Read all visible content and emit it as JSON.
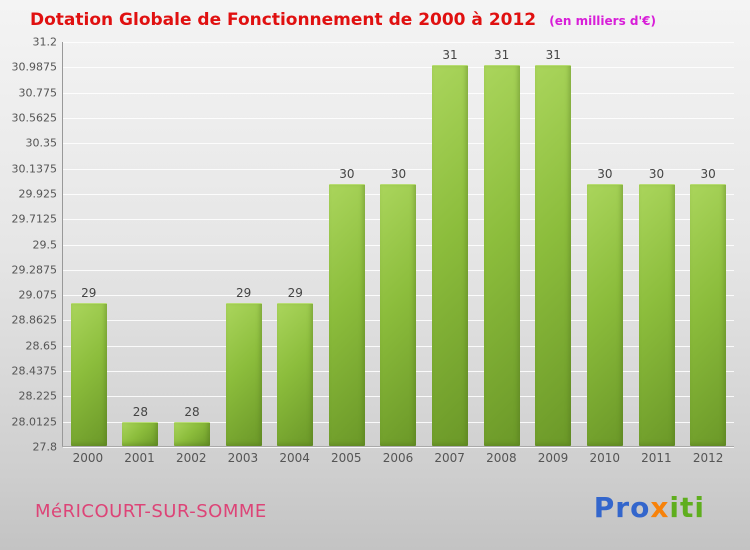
{
  "header": {
    "title": "Dotation Globale de Fonctionnement de 2000 à 2012",
    "subtitle": "(en milliers d'€)"
  },
  "chart_data": {
    "type": "bar",
    "title": "Dotation Globale de Fonctionnement de 2000 à 2012",
    "unit": "en milliers d'€",
    "categories": [
      "2000",
      "2001",
      "2002",
      "2003",
      "2004",
      "2005",
      "2006",
      "2007",
      "2008",
      "2009",
      "2010",
      "2011",
      "2012"
    ],
    "values": [
      29,
      28,
      28,
      29,
      29,
      30,
      30,
      31,
      31,
      31,
      30,
      30,
      30
    ],
    "ylim": [
      27.8,
      31.2
    ],
    "ytick_labels": [
      "31.2",
      "30.9875",
      "30.775",
      "30.5625",
      "30.35",
      "30.1375",
      "29.925",
      "29.7125",
      "29.5",
      "29.2875",
      "29.075",
      "28.8625",
      "28.65",
      "28.4375",
      "28.225",
      "28.0125",
      "27.8"
    ],
    "grid": true,
    "legend": false,
    "bar_color_light": "#aad55c",
    "bar_color_dark": "#6b9828"
  },
  "footer": {
    "city": "MéRICOURT-SUR-SOMME",
    "logo_segments": [
      {
        "text": "Pro",
        "color": "#3366cc"
      },
      {
        "text": "x",
        "color": "#f7820a"
      },
      {
        "text": "iti",
        "color": "#5fae1e"
      }
    ]
  },
  "colors": {
    "title": "#e01010",
    "subtitle": "#d81ed8",
    "city": "#dd4477",
    "gridline": "#ffffff",
    "tick_text": "#555555"
  }
}
